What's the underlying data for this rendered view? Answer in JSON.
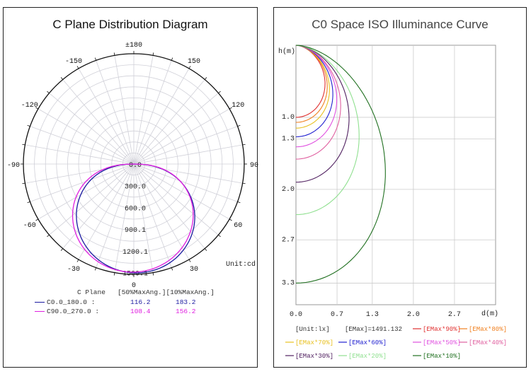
{
  "chart_data": [
    {
      "type": "polar",
      "title": "C Plane Distribution Diagram",
      "unit_label": "Unit:cd",
      "angle_labels": [
        "±180",
        "150",
        "120",
        "90",
        "60",
        "30",
        "0",
        "-30",
        "-60",
        "-90",
        "-120",
        "-150"
      ],
      "radial_labels": [
        "0.0",
        "300.0",
        "600.0",
        "900.1",
        "1200.1",
        "1500.1"
      ],
      "r_max": 1500.1,
      "series": [
        {
          "name": "C0.0_180.0",
          "color": "#1a1aa0",
          "peak": 1480
        },
        {
          "name": "C90.0_270.0",
          "color": "#e020e0",
          "peak": 1470
        }
      ],
      "table": {
        "header": [
          "C Plane",
          "[50%MaxAng.]",
          "[10%MaxAng.]"
        ],
        "rows": [
          {
            "name": "C0.0_180.0 :",
            "v50": "116.2",
            "v10": "183.2",
            "color": "#1a1aa0"
          },
          {
            "name": "C90.0_270.0 :",
            "v50": "108.4",
            "v10": "156.2",
            "color": "#e020e0"
          }
        ]
      }
    },
    {
      "type": "isoline",
      "title": "C0 Space ISO Illuminance Curve",
      "xlabel": "d(m)",
      "ylabel": "h(m)",
      "x_ticks": [
        "0.0",
        "0.7",
        "1.3",
        "2.0",
        "2.7"
      ],
      "x_tick_values": [
        0,
        0.7,
        1.3,
        2.0,
        2.7
      ],
      "y_ticks": [
        "1.0",
        "1.3",
        "2.0",
        "2.7",
        "3.3"
      ],
      "y_tick_values": [
        1.0,
        1.3,
        2.0,
        2.7,
        3.3
      ],
      "xlim": [
        0,
        3.4
      ],
      "ylim": [
        0,
        3.6
      ],
      "unit": "[Unit:lx]",
      "emax": "[EMax]=1491.132",
      "series": [
        {
          "name": "[EMax*90%]",
          "color": "#e03030",
          "depth": 1.0,
          "width": 0.52
        },
        {
          "name": "[EMax*80%]",
          "color": "#f08020",
          "depth": 1.07,
          "width": 0.56
        },
        {
          "name": "[EMax*70%]",
          "color": "#e8c020",
          "depth": 1.15,
          "width": 0.6
        },
        {
          "name": "[EMax*60%]",
          "color": "#2020d0",
          "depth": 1.27,
          "width": 0.66
        },
        {
          "name": "[EMax*50%]",
          "color": "#e050e0",
          "depth": 1.41,
          "width": 0.73
        },
        {
          "name": "[EMax*40%]",
          "color": "#e060a0",
          "depth": 1.58,
          "width": 0.8
        },
        {
          "name": "[EMax*30%]",
          "color": "#502060",
          "depth": 1.9,
          "width": 0.95
        },
        {
          "name": "[EMax*20%]",
          "color": "#90e090",
          "depth": 2.35,
          "width": 1.13
        },
        {
          "name": "[EMax*10%]",
          "color": "#207020",
          "depth": 3.3,
          "width": 1.6
        }
      ]
    }
  ]
}
